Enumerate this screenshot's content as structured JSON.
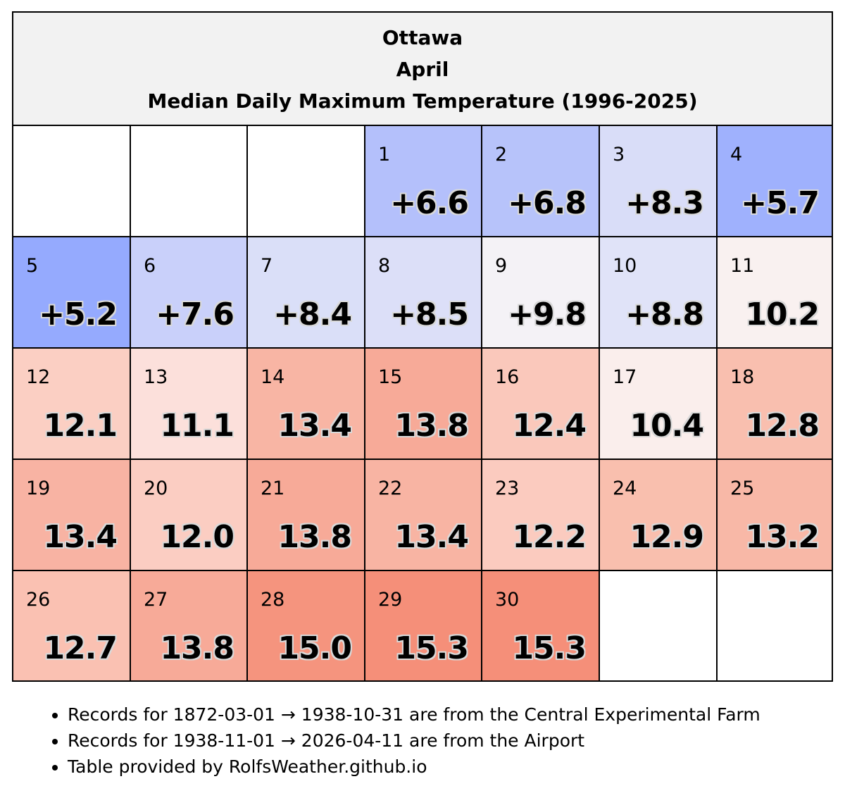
{
  "header": {
    "city": "Ottawa",
    "month": "April",
    "subtitle": "Median Daily Maximum Temperature (1996-2025)"
  },
  "leading_blank_days": 3,
  "days": [
    {
      "day": "1",
      "value": "+6.6",
      "color": "#b4c0fb"
    },
    {
      "day": "2",
      "value": "+6.8",
      "color": "#b7c3fa"
    },
    {
      "day": "3",
      "value": "+8.3",
      "color": "#d9ddf8"
    },
    {
      "day": "4",
      "value": "+5.7",
      "color": "#9fb1fd"
    },
    {
      "day": "5",
      "value": "+5.2",
      "color": "#95aafe"
    },
    {
      "day": "6",
      "value": "+7.6",
      "color": "#c9d0fa"
    },
    {
      "day": "7",
      "value": "+8.4",
      "color": "#dadff8"
    },
    {
      "day": "8",
      "value": "+8.5",
      "color": "#dcdff8"
    },
    {
      "day": "9",
      "value": "+9.8",
      "color": "#f4f2f6"
    },
    {
      "day": "10",
      "value": "+8.8",
      "color": "#e0e3f8"
    },
    {
      "day": "11",
      "value": "10.2",
      "color": "#f9f1f0"
    },
    {
      "day": "12",
      "value": "12.1",
      "color": "#fbcfc3"
    },
    {
      "day": "13",
      "value": "11.1",
      "color": "#fce0db"
    },
    {
      "day": "14",
      "value": "13.4",
      "color": "#f8b5a4"
    },
    {
      "day": "15",
      "value": "13.8",
      "color": "#f7aa98"
    },
    {
      "day": "16",
      "value": "12.4",
      "color": "#fac8bb"
    },
    {
      "day": "17",
      "value": "10.4",
      "color": "#faeeec"
    },
    {
      "day": "18",
      "value": "12.8",
      "color": "#f9bfaf"
    },
    {
      "day": "19",
      "value": "13.4",
      "color": "#f8b3a3"
    },
    {
      "day": "20",
      "value": "12.0",
      "color": "#fbcdc2"
    },
    {
      "day": "21",
      "value": "13.8",
      "color": "#f7aa98"
    },
    {
      "day": "22",
      "value": "13.4",
      "color": "#f8b4a3"
    },
    {
      "day": "23",
      "value": "12.2",
      "color": "#fbcbbf"
    },
    {
      "day": "24",
      "value": "12.9",
      "color": "#f9bfae"
    },
    {
      "day": "25",
      "value": "13.2",
      "color": "#f8b8a7"
    },
    {
      "day": "26",
      "value": "12.7",
      "color": "#fac1b2"
    },
    {
      "day": "27",
      "value": "13.8",
      "color": "#f7aa98"
    },
    {
      "day": "28",
      "value": "15.0",
      "color": "#f5947e"
    },
    {
      "day": "29",
      "value": "15.3",
      "color": "#f58f79"
    },
    {
      "day": "30",
      "value": "15.3",
      "color": "#f58f79"
    }
  ],
  "notes": [
    "Records for 1872-03-01 → 1938-10-31 are from the Central Experimental Farm",
    "Records for 1938-11-01 → 2026-04-11 are from the Airport",
    "Table provided by RolfsWeather.github.io"
  ]
}
